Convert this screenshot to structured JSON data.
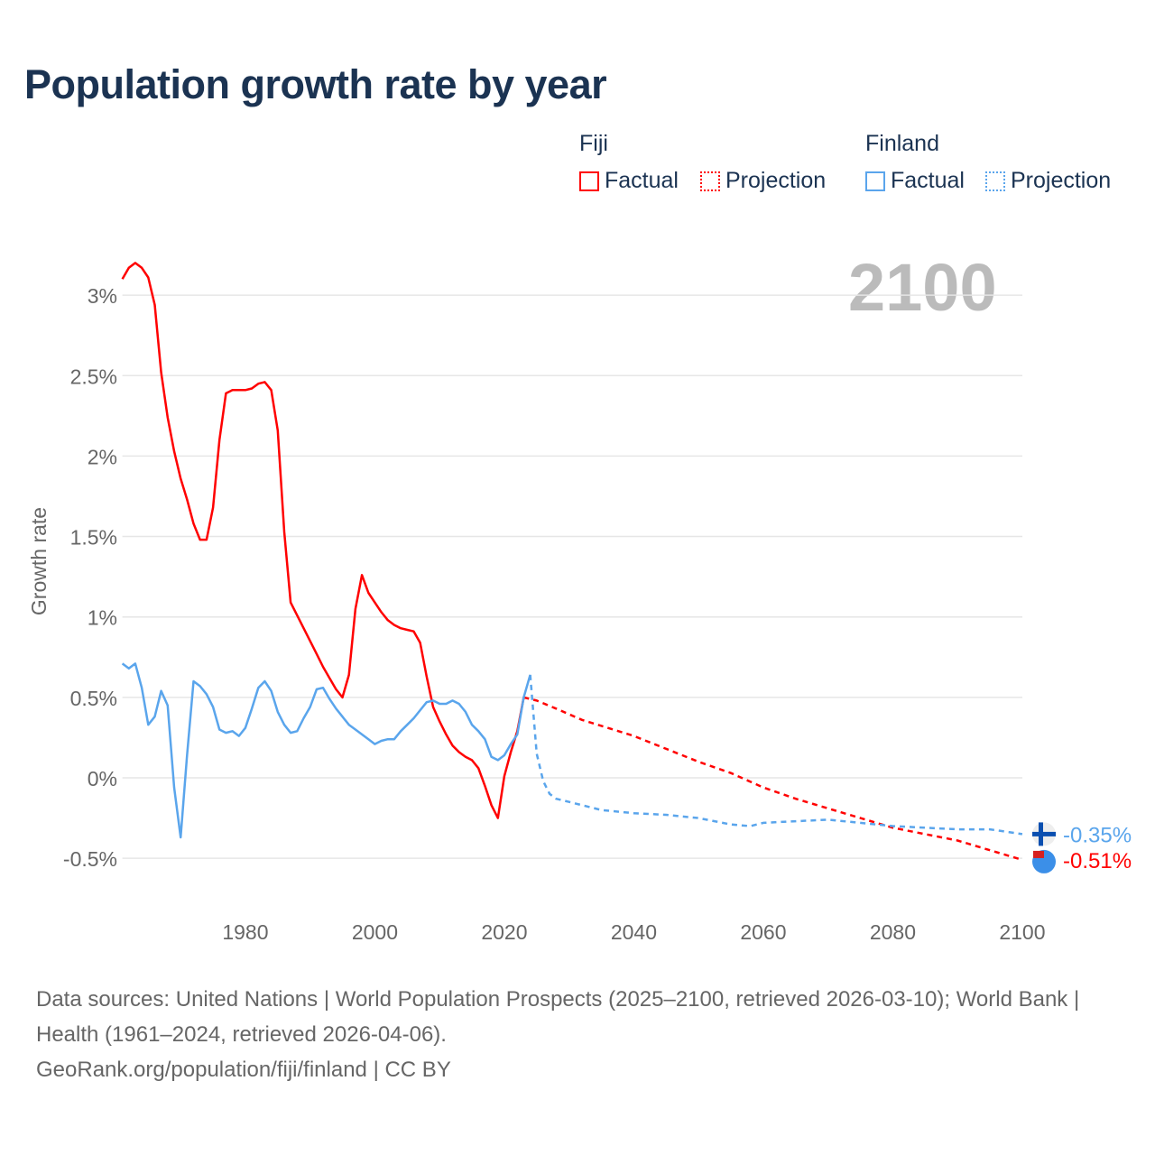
{
  "title": "Population growth rate by year",
  "current_year": "2100",
  "legend": {
    "groups": [
      {
        "name": "Fiji",
        "items": [
          "Factual",
          "Projection"
        ],
        "color": "#ff0000"
      },
      {
        "name": "Finland",
        "items": [
          "Factual",
          "Projection"
        ],
        "color": "#5aa5ec"
      }
    ]
  },
  "footer": {
    "sources": "Data sources: United Nations | World Population Prospects (2025–2100, retrieved 2026-03-10); World Bank | Health (1961–2024, retrieved 2026-04-06).",
    "credit": "GeoRank.org/population/fiji/finland | CC BY"
  },
  "chart_data": {
    "type": "line",
    "title": "Population growth rate by year",
    "ylabel": "Growth rate",
    "xlabel": "",
    "xlim": [
      1961,
      2100
    ],
    "ylim": [
      -0.65,
      3.25
    ],
    "x_ticks": [
      "1980",
      "2000",
      "2020",
      "2040",
      "2060",
      "2080",
      "2100"
    ],
    "y_ticks": [
      "3%",
      "2.5%",
      "2%",
      "1.5%",
      "1%",
      "0.5%",
      "0%",
      "-0.5%"
    ],
    "y_tick_values": [
      3,
      2.5,
      2,
      1.5,
      1,
      0.5,
      0,
      -0.5
    ],
    "grid": true,
    "legend_position": "top-right",
    "series": [
      {
        "name": "Fiji Factual",
        "color": "#ff0000",
        "dashed": false,
        "start": 1961,
        "values": [
          3.1,
          3.17,
          3.2,
          3.17,
          3.11,
          2.94,
          2.52,
          2.24,
          2.03,
          1.86,
          1.73,
          1.58,
          1.48,
          1.48,
          1.68,
          2.1,
          2.39,
          2.41,
          2.41,
          2.41,
          2.42,
          2.45,
          2.46,
          2.41,
          2.16,
          1.53,
          1.09,
          1.01,
          0.93,
          0.85,
          0.77,
          0.69,
          0.62,
          0.55,
          0.5,
          0.64,
          1.05,
          1.26,
          1.15,
          1.09,
          1.03,
          0.98,
          0.95,
          0.93,
          0.92,
          0.91,
          0.84,
          0.63,
          0.44,
          0.35,
          0.27,
          0.2,
          0.16,
          0.13,
          0.11,
          0.06,
          -0.05,
          -0.17,
          -0.25,
          0.01,
          0.16,
          0.29,
          0.5
        ]
      },
      {
        "name": "Fiji Projection",
        "color": "#ff0000",
        "dashed": true,
        "x": [
          2023,
          2025,
          2028,
          2032,
          2036,
          2040,
          2045,
          2050,
          2055,
          2060,
          2065,
          2070,
          2075,
          2080,
          2085,
          2090,
          2095,
          2100
        ],
        "values": [
          0.5,
          0.48,
          0.43,
          0.36,
          0.31,
          0.26,
          0.18,
          0.1,
          0.03,
          -0.06,
          -0.13,
          -0.19,
          -0.25,
          -0.31,
          -0.35,
          -0.39,
          -0.45,
          -0.51
        ]
      },
      {
        "name": "Finland Factual",
        "color": "#5aa5ec",
        "dashed": false,
        "start": 1961,
        "values": [
          0.71,
          0.68,
          0.71,
          0.56,
          0.33,
          0.38,
          0.54,
          0.45,
          -0.06,
          -0.37,
          0.14,
          0.6,
          0.57,
          0.52,
          0.44,
          0.3,
          0.28,
          0.29,
          0.26,
          0.31,
          0.43,
          0.56,
          0.6,
          0.54,
          0.41,
          0.33,
          0.28,
          0.29,
          0.37,
          0.44,
          0.55,
          0.56,
          0.49,
          0.43,
          0.38,
          0.33,
          0.3,
          0.27,
          0.24,
          0.21,
          0.23,
          0.24,
          0.24,
          0.29,
          0.33,
          0.37,
          0.42,
          0.47,
          0.48,
          0.46,
          0.46,
          0.48,
          0.46,
          0.41,
          0.33,
          0.29,
          0.24,
          0.13,
          0.11,
          0.14,
          0.21,
          0.27,
          0.5,
          0.64
        ]
      },
      {
        "name": "Finland Projection",
        "color": "#5aa5ec",
        "dashed": true,
        "x": [
          2024,
          2025,
          2026,
          2027,
          2028,
          2030,
          2035,
          2040,
          2045,
          2050,
          2055,
          2058,
          2060,
          2065,
          2070,
          2075,
          2080,
          2085,
          2090,
          2095,
          2100
        ],
        "values": [
          0.64,
          0.15,
          -0.02,
          -0.1,
          -0.13,
          -0.15,
          -0.2,
          -0.22,
          -0.23,
          -0.25,
          -0.29,
          -0.3,
          -0.28,
          -0.27,
          -0.26,
          -0.28,
          -0.3,
          -0.31,
          -0.32,
          -0.32,
          -0.35
        ]
      }
    ],
    "end_labels": [
      {
        "country": "Finland",
        "value": "-0.35%",
        "color": "#5aa5ec"
      },
      {
        "country": "Fiji",
        "value": "-0.51%",
        "color": "#ff0000"
      }
    ]
  }
}
